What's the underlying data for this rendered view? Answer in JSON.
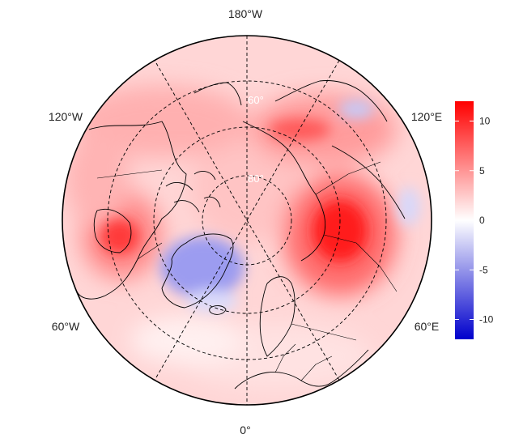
{
  "map": {
    "projection": "north-polar-stereographic",
    "longitude_labels": {
      "top": "180°W",
      "bottom": "0°",
      "upper_left": "120°W",
      "upper_right": "120°E",
      "lower_left": "60°W",
      "lower_right": "60°E"
    },
    "latitude_labels": [
      "60°",
      "80°"
    ],
    "graticule": "dashed"
  },
  "colorbar": {
    "ticks": [
      "10",
      "5",
      "0",
      "-5",
      "-10"
    ],
    "range": [
      -12,
      12
    ],
    "colors": {
      "min": "#0000ff",
      "mid": "#ffffff",
      "max": "#ff0000"
    }
  }
}
